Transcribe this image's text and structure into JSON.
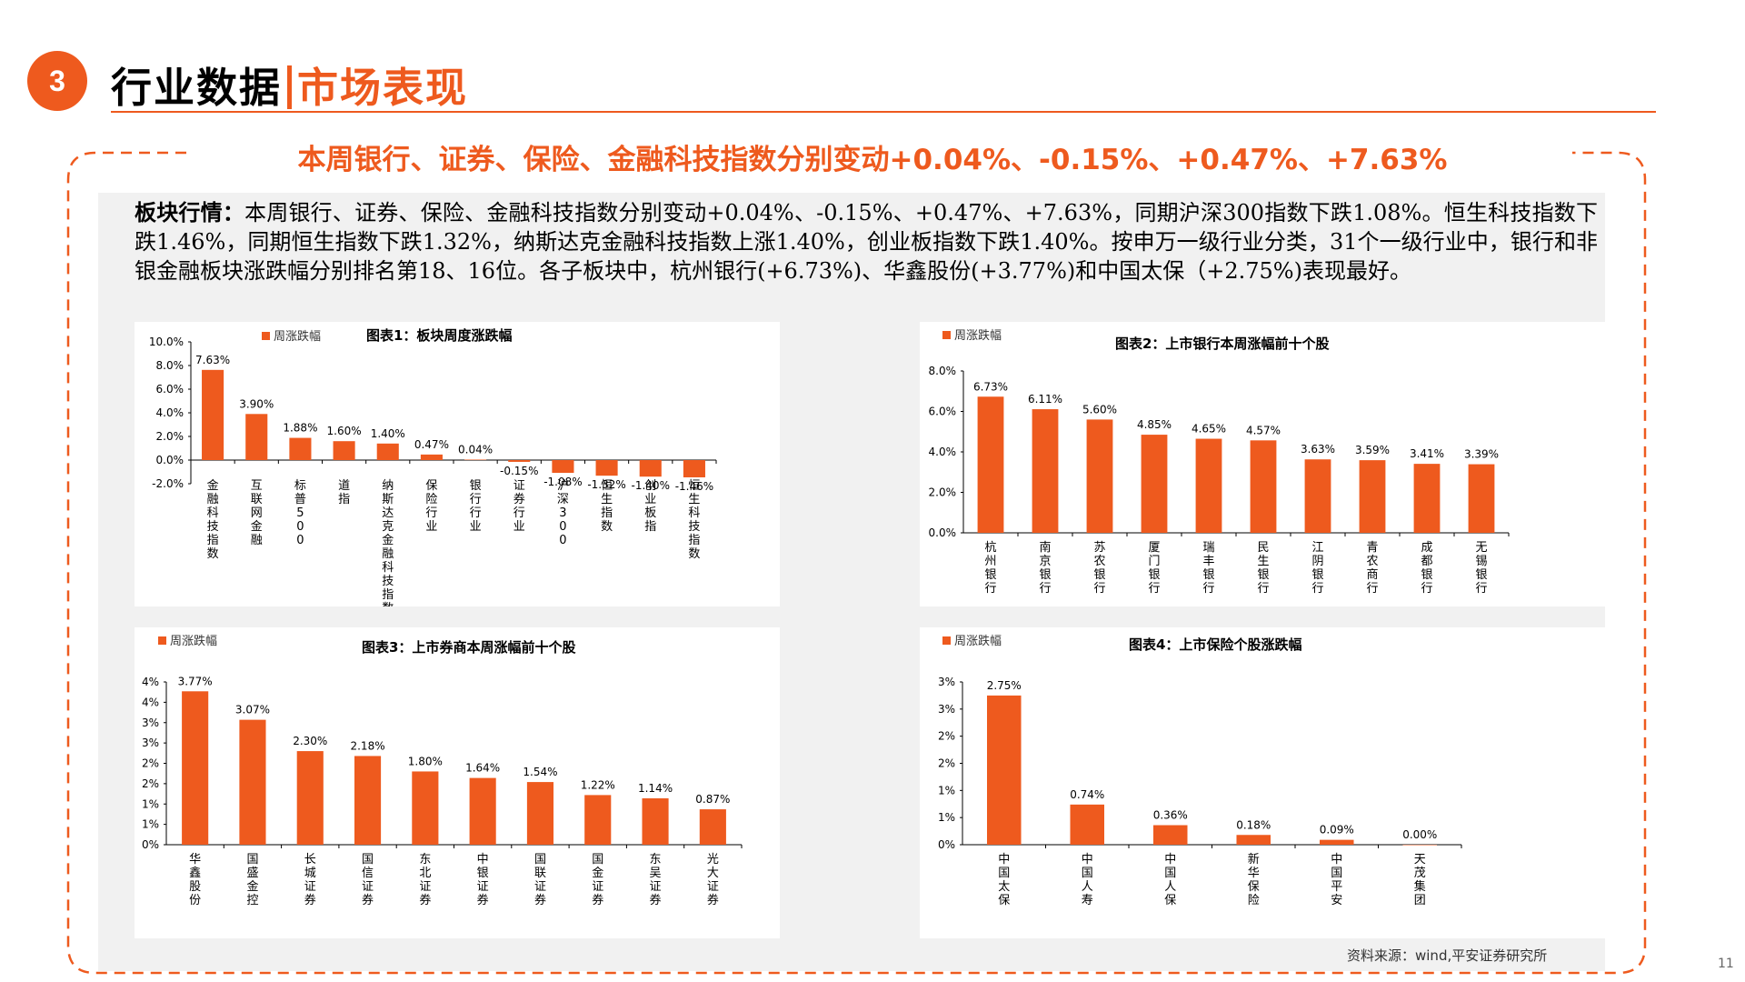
{
  "header": {
    "section_number": "3",
    "title_part1": "行业数据",
    "title_part2": "市场表现"
  },
  "subtitle": "本周银行、证券、保险、金融科技指数分别变动+0.04%、-0.15%、+0.47%、+7.63%",
  "summary": {
    "label": "板块行情：",
    "text": "本周银行、证券、保险、金融科技指数分别变动+0.04%、-0.15%、+0.47%、+7.63%，同期沪深300指数下跌1.08%。恒生科技指数下跌1.46%，同期恒生指数下跌1.32%，纳斯达克金融科技指数上涨1.40%，创业板指数下跌1.40%。按申万一级行业分类，31个一级行业中，银行和非银金融板块涨跌幅分别排名第18、16位。各子板块中，杭州银行(+6.73%)、华鑫股份(+3.77%)和中国太保（+2.75%)表现最好。"
  },
  "colors": {
    "accent": "#ee5a1e",
    "bar": "#ee5a1e",
    "background": "#f1f1f1"
  },
  "chart_data": [
    {
      "type": "bar",
      "title": "图表1：板块周度涨跌幅",
      "series": [
        {
          "name": "周涨跌幅",
          "values": [
            7.63,
            3.9,
            1.88,
            1.6,
            1.4,
            0.47,
            0.04,
            -0.15,
            -1.08,
            -1.32,
            -1.4,
            -1.46
          ]
        }
      ],
      "categories": [
        "金融科技指数",
        "互联网金融",
        "标普500",
        "道指",
        "纳斯达克金融科技指数",
        "保险行业",
        "银行行业",
        "证券行业",
        "沪深300",
        "恒生指数",
        "创业板指",
        "恒生科技指数"
      ],
      "labels": [
        "7.63%",
        "3.90%",
        "1.88%",
        "1.60%",
        "1.40%",
        "0.47%",
        "0.04%",
        "-0.15%",
        "-1.08%",
        "-1.32%",
        "-1.40%",
        "-1.46%"
      ],
      "yticks": [
        "10.0%",
        "8.0%",
        "6.0%",
        "4.0%",
        "2.0%",
        "0.0%",
        "-2.0%"
      ],
      "ylim": [
        -2,
        10
      ]
    },
    {
      "type": "bar",
      "title": "图表2：上市银行本周涨幅前十个股",
      "series": [
        {
          "name": "周涨跌幅",
          "values": [
            6.73,
            6.11,
            5.6,
            4.85,
            4.65,
            4.57,
            3.63,
            3.59,
            3.41,
            3.39
          ]
        }
      ],
      "categories": [
        "杭州银行",
        "南京银行",
        "苏农银行",
        "厦门银行",
        "瑞丰银行",
        "民生银行",
        "江阴银行",
        "青农商行",
        "成都银行",
        "无锡银行"
      ],
      "labels": [
        "6.73%",
        "6.11%",
        "5.60%",
        "4.85%",
        "4.65%",
        "4.57%",
        "3.63%",
        "3.59%",
        "3.41%",
        "3.39%"
      ],
      "yticks": [
        "8.0%",
        "6.0%",
        "4.0%",
        "2.0%",
        "0.0%"
      ],
      "ylim": [
        0,
        8
      ]
    },
    {
      "type": "bar",
      "title": "图表3：上市券商本周涨幅前十个股",
      "series": [
        {
          "name": "周涨跌幅",
          "values": [
            3.77,
            3.07,
            2.3,
            2.18,
            1.8,
            1.64,
            1.54,
            1.22,
            1.14,
            0.87
          ]
        }
      ],
      "categories": [
        "华鑫股份",
        "国盛金控",
        "长城证券",
        "国信证券",
        "东北证券",
        "中银证券",
        "国联证券",
        "国金证券",
        "东吴证券",
        "光大证券"
      ],
      "labels": [
        "3.77%",
        "3.07%",
        "2.30%",
        "2.18%",
        "1.80%",
        "1.64%",
        "1.54%",
        "1.22%",
        "1.14%",
        "0.87%"
      ],
      "yticks": [
        "4%",
        "4%",
        "3%",
        "3%",
        "2%",
        "2%",
        "1%",
        "1%",
        "0%"
      ],
      "ylim": [
        0,
        4
      ]
    },
    {
      "type": "bar",
      "title": "图表4：上市保险个股涨跌幅",
      "series": [
        {
          "name": "周涨跌幅",
          "values": [
            2.75,
            0.74,
            0.36,
            0.18,
            0.09,
            0.0
          ]
        }
      ],
      "categories": [
        "中国太保",
        "中国人寿",
        "中国人保",
        "新华保险",
        "中国平安",
        "天茂集团"
      ],
      "labels": [
        "2.75%",
        "0.74%",
        "0.36%",
        "0.18%",
        "0.09%",
        "0.00%"
      ],
      "yticks": [
        "3%",
        "3%",
        "2%",
        "2%",
        "1%",
        "1%",
        "0%"
      ],
      "ylim": [
        0,
        3
      ]
    }
  ],
  "source": "资料来源：wind,平安证券研究所",
  "page_number": "11"
}
